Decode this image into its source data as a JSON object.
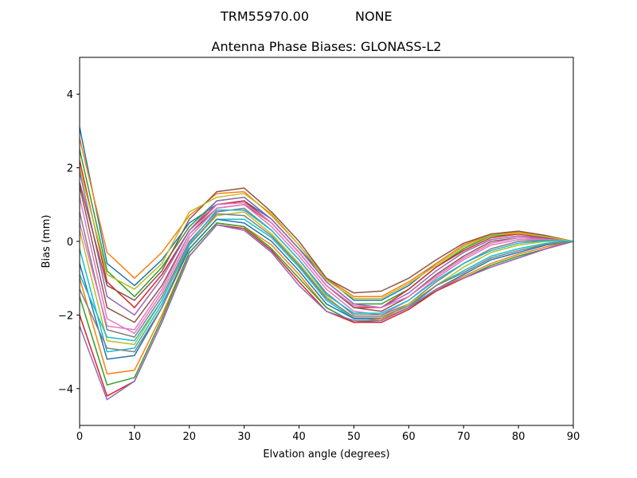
{
  "chart_data": {
    "type": "line",
    "suptitle_left": "TRM55970.00",
    "suptitle_right": "NONE",
    "title": "Antenna Phase Biases: GLONASS-L2",
    "xlabel": "Elvation angle (degrees)",
    "ylabel": "Bias (mm)",
    "xlim": [
      0,
      90
    ],
    "ylim": [
      -5,
      5
    ],
    "xticks": [
      0,
      10,
      20,
      30,
      40,
      50,
      60,
      70,
      80,
      90
    ],
    "yticks": [
      -4,
      -2,
      0,
      2,
      4
    ],
    "grid": false,
    "legend": "none",
    "x": [
      0,
      5,
      10,
      15,
      20,
      25,
      30,
      35,
      40,
      45,
      50,
      55,
      60,
      65,
      70,
      75,
      80,
      85,
      90
    ],
    "series_colors": [
      "#1f77b4",
      "#ff7f0e",
      "#2ca02c",
      "#d62728",
      "#9467bd",
      "#8c564b",
      "#e377c2",
      "#7f7f7f",
      "#bcbd22",
      "#17becf"
    ],
    "series": [
      {
        "values": [
          3.1,
          -0.6,
          -1.2,
          -0.5,
          0.5,
          1.0,
          1.1,
          0.6,
          -0.2,
          -1.0,
          -1.6,
          -1.6,
          -1.2,
          -0.6,
          -0.1,
          0.2,
          0.25,
          0.15,
          0.0
        ]
      },
      {
        "values": [
          2.8,
          -0.3,
          -1.0,
          -0.3,
          0.7,
          1.3,
          1.35,
          0.7,
          -0.1,
          -1.0,
          -1.5,
          -1.5,
          -1.1,
          -0.6,
          -0.1,
          0.2,
          0.25,
          0.15,
          0.0
        ]
      },
      {
        "values": [
          2.5,
          -0.8,
          -1.5,
          -0.7,
          0.4,
          1.1,
          1.2,
          0.6,
          -0.2,
          -1.1,
          -1.7,
          -1.7,
          -1.3,
          -0.7,
          -0.2,
          0.15,
          0.2,
          0.12,
          0.0
        ]
      },
      {
        "values": [
          2.2,
          -1.1,
          -1.8,
          -0.9,
          0.3,
          1.0,
          1.1,
          0.5,
          -0.3,
          -1.2,
          -1.8,
          -1.8,
          -1.3,
          -0.7,
          -0.25,
          0.1,
          0.2,
          0.1,
          0.0
        ]
      },
      {
        "values": [
          1.9,
          -1.5,
          -2.0,
          -1.0,
          0.3,
          1.1,
          1.2,
          0.6,
          -0.2,
          -1.1,
          -1.7,
          -1.8,
          -1.4,
          -0.8,
          -0.3,
          0.05,
          0.15,
          0.1,
          0.0
        ]
      },
      {
        "values": [
          1.5,
          -1.8,
          -2.2,
          -1.2,
          0.2,
          0.9,
          1.0,
          0.5,
          -0.3,
          -1.2,
          -1.8,
          -1.9,
          -1.5,
          -0.9,
          -0.4,
          0.0,
          0.1,
          0.08,
          0.0
        ]
      },
      {
        "values": [
          1.2,
          -2.1,
          -2.5,
          -1.4,
          0.1,
          0.9,
          1.0,
          0.4,
          -0.4,
          -1.3,
          -1.9,
          -2.0,
          -1.6,
          -1.0,
          -0.5,
          -0.1,
          0.05,
          0.05,
          0.0
        ]
      },
      {
        "values": [
          0.8,
          -2.4,
          -2.6,
          -1.5,
          0.0,
          0.8,
          0.9,
          0.3,
          -0.5,
          -1.4,
          -2.0,
          -2.0,
          -1.7,
          -1.1,
          -0.6,
          -0.2,
          0.0,
          0.03,
          0.0
        ]
      },
      {
        "values": [
          0.3,
          -2.7,
          -2.8,
          -1.6,
          -0.1,
          0.7,
          0.8,
          0.2,
          -0.6,
          -1.5,
          -2.1,
          -2.1,
          -1.7,
          -1.2,
          -0.7,
          -0.3,
          -0.1,
          0.0,
          0.0
        ]
      },
      {
        "values": [
          -0.2,
          -3.0,
          -2.9,
          -1.7,
          -0.2,
          0.6,
          0.6,
          0.1,
          -0.7,
          -1.6,
          -2.1,
          -2.1,
          -1.8,
          -1.2,
          -0.8,
          -0.4,
          -0.2,
          -0.05,
          0.0
        ]
      },
      {
        "values": [
          -0.6,
          -3.2,
          -3.1,
          -1.8,
          -0.2,
          0.6,
          0.5,
          0.0,
          -0.8,
          -1.7,
          -2.1,
          -2.1,
          -1.8,
          -1.3,
          -0.9,
          -0.5,
          -0.3,
          -0.1,
          0.0
        ]
      },
      {
        "values": [
          -1.0,
          -3.6,
          -3.5,
          -2.0,
          -0.3,
          0.5,
          0.4,
          -0.1,
          -0.9,
          -1.8,
          -2.2,
          -2.1,
          -1.8,
          -1.3,
          -0.95,
          -0.6,
          -0.35,
          -0.15,
          0.0
        ]
      },
      {
        "values": [
          -1.5,
          -3.9,
          -3.7,
          -2.1,
          -0.3,
          0.5,
          0.4,
          -0.2,
          -1.0,
          -1.8,
          -2.2,
          -2.15,
          -1.8,
          -1.35,
          -1.0,
          -0.65,
          -0.4,
          -0.2,
          0.0
        ]
      },
      {
        "values": [
          -2.0,
          -4.2,
          -3.8,
          -2.2,
          -0.4,
          0.45,
          0.35,
          -0.25,
          -1.1,
          -1.9,
          -2.2,
          -2.2,
          -1.85,
          -1.35,
          -1.0,
          -0.7,
          -0.45,
          -0.2,
          0.0
        ]
      },
      {
        "values": [
          -2.3,
          -4.3,
          -3.8,
          -2.2,
          -0.4,
          0.45,
          0.3,
          -0.3,
          -1.2,
          -1.9,
          -2.15,
          -2.15,
          -1.8,
          -1.3,
          -1.0,
          -0.7,
          -0.45,
          -0.2,
          0.0
        ]
      },
      {
        "values": [
          1.6,
          -1.2,
          -1.6,
          -0.8,
          0.6,
          1.35,
          1.45,
          0.8,
          0.0,
          -1.0,
          -1.4,
          -1.35,
          -1.0,
          -0.5,
          -0.05,
          0.2,
          0.28,
          0.16,
          0.0
        ]
      },
      {
        "values": [
          0.5,
          -2.3,
          -2.4,
          -1.3,
          0.2,
          1.0,
          1.05,
          0.5,
          -0.3,
          -1.2,
          -1.75,
          -1.8,
          -1.5,
          -0.95,
          -0.45,
          -0.05,
          0.1,
          0.06,
          0.0
        ]
      },
      {
        "values": [
          -1.3,
          -2.9,
          -3.0,
          -1.8,
          -0.1,
          0.75,
          0.7,
          0.15,
          -0.65,
          -1.55,
          -2.05,
          -2.05,
          -1.75,
          -1.2,
          -0.85,
          -0.45,
          -0.25,
          -0.08,
          0.0
        ]
      },
      {
        "values": [
          2.0,
          -0.9,
          -1.3,
          -0.6,
          0.8,
          1.2,
          1.3,
          0.75,
          -0.1,
          -1.05,
          -1.55,
          -1.55,
          -1.15,
          -0.65,
          -0.15,
          0.17,
          0.22,
          0.13,
          0.0
        ]
      },
      {
        "values": [
          -0.9,
          -2.6,
          -2.7,
          -1.6,
          -0.05,
          0.85,
          0.85,
          0.3,
          -0.5,
          -1.45,
          -1.95,
          -1.95,
          -1.6,
          -1.05,
          -0.6,
          -0.25,
          -0.05,
          0.02,
          0.0
        ]
      }
    ]
  }
}
